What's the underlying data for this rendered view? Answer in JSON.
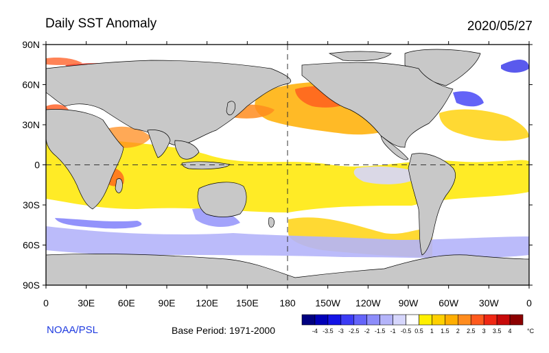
{
  "header": {
    "title": "Daily SST Anomaly",
    "date": "2020/05/27"
  },
  "footer": {
    "credit": "NOAA/PSL",
    "base_period": "Base Period: 1971-2000"
  },
  "axes": {
    "lat_ticks": [
      "90N",
      "60N",
      "30N",
      "0",
      "30S",
      "60S",
      "90S"
    ],
    "lon_ticks": [
      "0",
      "30E",
      "60E",
      "90E",
      "120E",
      "150E",
      "180",
      "150W",
      "120W",
      "90W",
      "60W",
      "30W",
      "0"
    ]
  },
  "legend": {
    "unit": "°C",
    "labels": [
      "-4",
      "-3.5",
      "-3",
      "-2.5",
      "-2",
      "-1.5",
      "-1",
      "-0.5",
      "0.5",
      "1",
      "1.5",
      "2",
      "2.5",
      "3",
      "3.5",
      "4"
    ],
    "colors": [
      "#000080",
      "#0000b8",
      "#1414e6",
      "#3c3cf5",
      "#6464fa",
      "#8c8cfa",
      "#b4b4fa",
      "#d6d6fc",
      "#ffffff",
      "#fff000",
      "#ffd000",
      "#ffae00",
      "#ff8c1e",
      "#ff5a1e",
      "#f02814",
      "#c80a0a",
      "#8c0000"
    ]
  },
  "map": {
    "land_color": "#c8c8c8",
    "frame_color": "#000000",
    "reference_lines": [
      "Equator",
      "Date Line (180)"
    ]
  }
}
